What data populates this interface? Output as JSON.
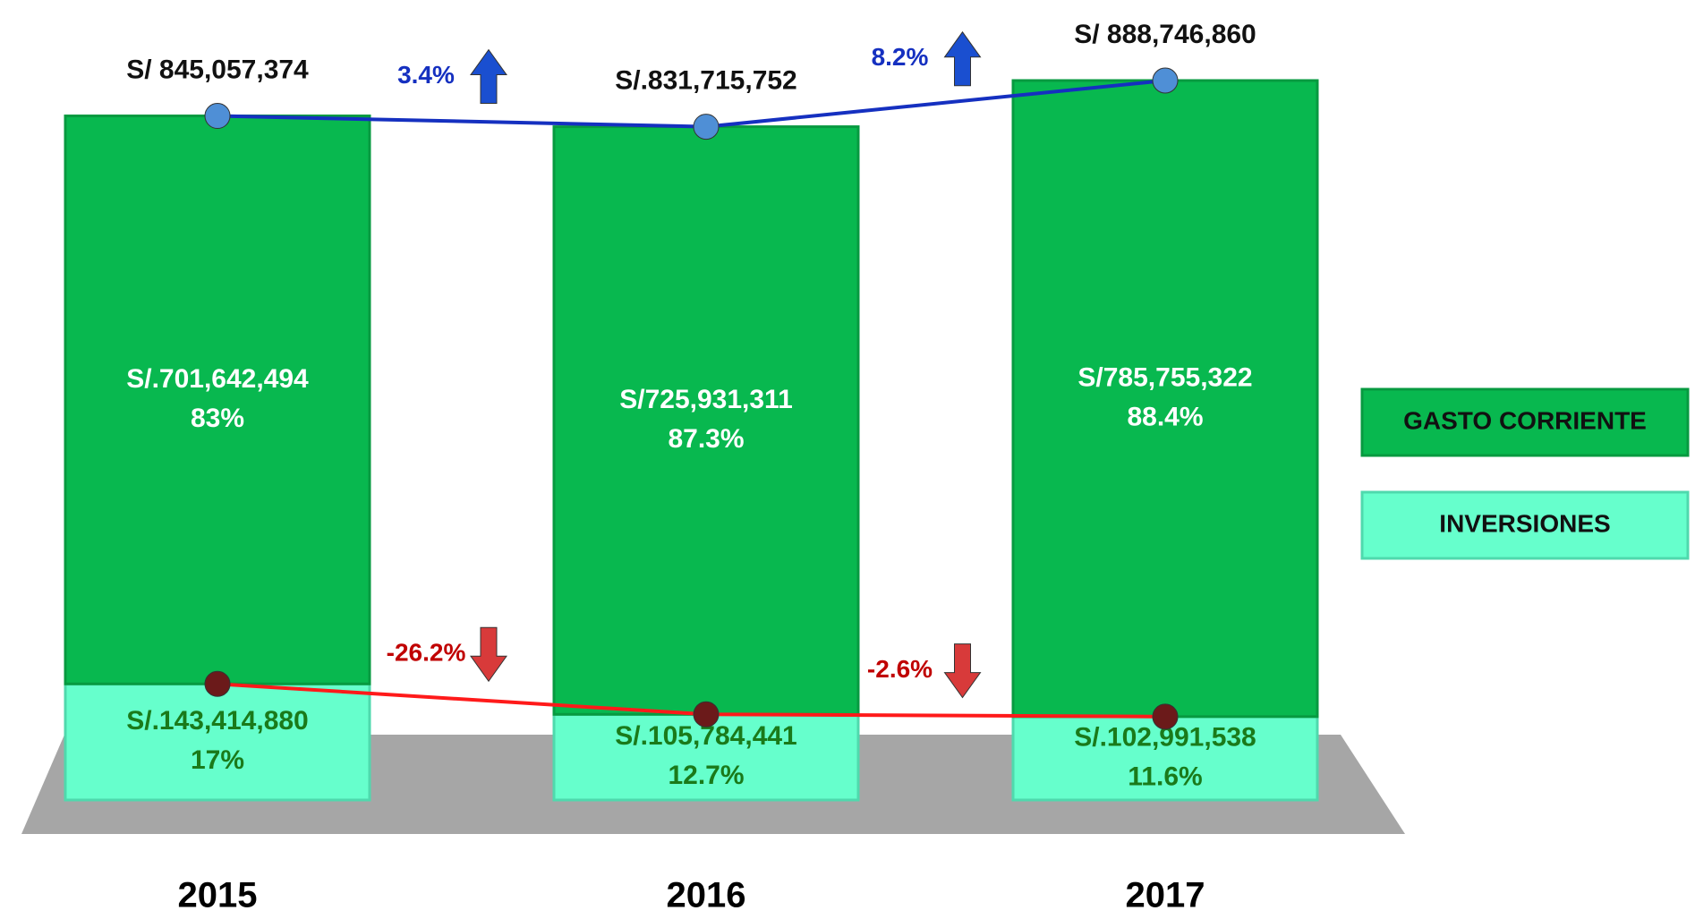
{
  "chart_data": {
    "type": "bar",
    "stacked": true,
    "categories": [
      "2015",
      "2016",
      "2017"
    ],
    "series": [
      {
        "name": "INVERSIONES",
        "color": "#66ffcc",
        "values": [
          143414880,
          105784441,
          102991538
        ],
        "value_labels": [
          "S/.143,414,880",
          "S/.105,784,441",
          "S/.102,991,538"
        ],
        "shares": [
          17,
          12.7,
          11.6
        ],
        "share_labels": [
          "17%",
          "12.7%",
          "11.6%"
        ],
        "change": [
          -26.2,
          -2.6
        ],
        "change_labels": [
          "-26.2%",
          "-2.6%"
        ],
        "line_color": "#ff1a1a"
      },
      {
        "name": "GASTO CORRIENTE",
        "color": "#08b84f",
        "values": [
          701642494,
          725931311,
          785755322
        ],
        "value_labels": [
          "S/.701,642,494",
          "S/725,931,311",
          "S/785,755,322"
        ],
        "shares": [
          83,
          87.3,
          88.4
        ],
        "share_labels": [
          "83%",
          "87.3%",
          "88.4%"
        ]
      }
    ],
    "totals": [
      845057374,
      831715752,
      888746860
    ],
    "total_labels": [
      "S/ 845,057,374",
      "S/.831,715,752",
      "S/ 888,746,860"
    ],
    "total_change": [
      3.4,
      8.2
    ],
    "total_change_labels": [
      "3.4%",
      "8.2%"
    ],
    "total_line_color": "#1530c0"
  }
}
